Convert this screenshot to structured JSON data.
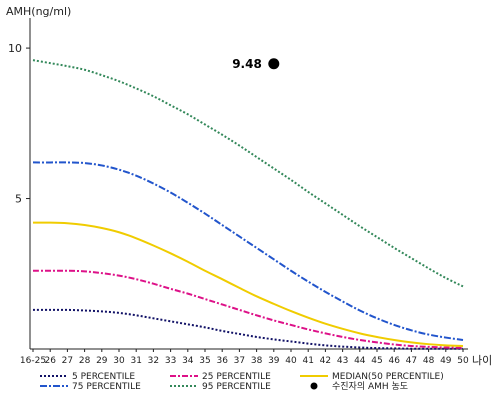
{
  "chart_data": {
    "type": "line",
    "ylabel": "AMH(ng/ml)",
    "xlabel": "나이",
    "x": [
      "16-25",
      "26",
      "27",
      "28",
      "29",
      "30",
      "31",
      "32",
      "33",
      "34",
      "35",
      "36",
      "37",
      "38",
      "39",
      "40",
      "41",
      "42",
      "43",
      "44",
      "45",
      "46",
      "47",
      "48",
      "49",
      "50"
    ],
    "ylim": [
      0,
      11
    ],
    "yticks": [
      "10",
      "5"
    ],
    "ytick_values": [
      10,
      5
    ],
    "grid": false,
    "legend_position": "bottom",
    "series": [
      {
        "name": "5 PERCENTILE",
        "color": "#111166",
        "dash": "2,2",
        "width": 2,
        "values": [
          1.3,
          1.3,
          1.3,
          1.28,
          1.25,
          1.2,
          1.12,
          1.02,
          0.92,
          0.82,
          0.72,
          0.6,
          0.5,
          0.4,
          0.32,
          0.25,
          0.18,
          0.12,
          0.08,
          0.05,
          0.03,
          0.02,
          0.01,
          0.01,
          0.01,
          0.01
        ]
      },
      {
        "name": "25 PERCENTILE",
        "color": "#dd1188",
        "dash": "6,2,2,2",
        "width": 2,
        "values": [
          2.6,
          2.6,
          2.6,
          2.58,
          2.52,
          2.44,
          2.32,
          2.17,
          2.0,
          1.84,
          1.66,
          1.48,
          1.3,
          1.12,
          0.95,
          0.8,
          0.65,
          0.52,
          0.4,
          0.3,
          0.22,
          0.15,
          0.1,
          0.07,
          0.05,
          0.04
        ]
      },
      {
        "name": "MEDIAN(50 PERCENTILE)",
        "color": "#f0cc00",
        "dash": "",
        "width": 2,
        "values": [
          4.2,
          4.2,
          4.18,
          4.12,
          4.02,
          3.88,
          3.68,
          3.44,
          3.18,
          2.9,
          2.6,
          2.32,
          2.03,
          1.75,
          1.5,
          1.26,
          1.04,
          0.84,
          0.67,
          0.52,
          0.4,
          0.3,
          0.22,
          0.16,
          0.12,
          0.1
        ]
      },
      {
        "name": "75 PERCENTILE",
        "color": "#2255cc",
        "dash": "7,2,2,2",
        "width": 2,
        "values": [
          6.2,
          6.2,
          6.2,
          6.18,
          6.1,
          5.96,
          5.76,
          5.5,
          5.2,
          4.86,
          4.5,
          4.12,
          3.74,
          3.36,
          2.98,
          2.6,
          2.24,
          1.9,
          1.58,
          1.28,
          1.02,
          0.8,
          0.62,
          0.48,
          0.38,
          0.3
        ]
      },
      {
        "name": "95 PERCENTILE",
        "color": "#33885a",
        "dash": "2,2",
        "width": 2,
        "values": [
          9.6,
          9.5,
          9.4,
          9.28,
          9.1,
          8.9,
          8.66,
          8.4,
          8.1,
          7.8,
          7.46,
          7.12,
          6.76,
          6.38,
          6.0,
          5.62,
          5.22,
          4.84,
          4.46,
          4.08,
          3.72,
          3.36,
          3.02,
          2.68,
          2.36,
          2.08
        ]
      }
    ],
    "highlight_point": {
      "legend_label": "수진자의 AMH 농도",
      "x": "39",
      "y": 9.48,
      "label": "9.48",
      "color": "#000000"
    }
  }
}
